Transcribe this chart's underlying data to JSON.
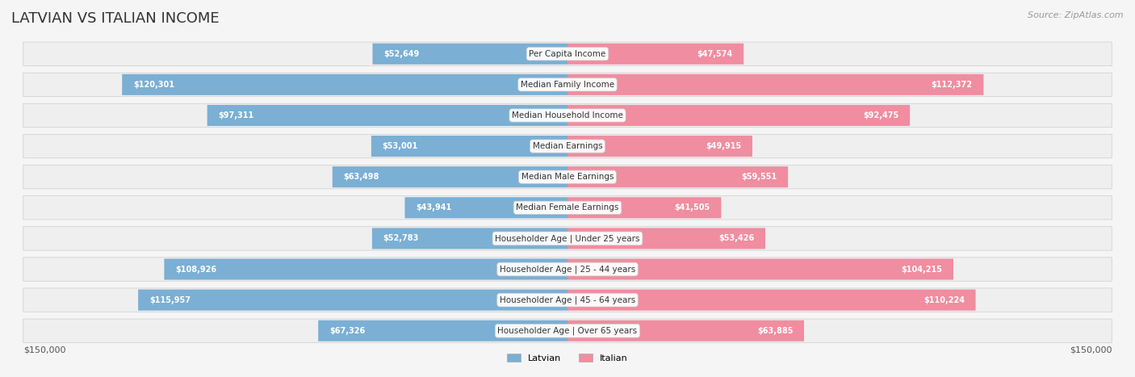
{
  "title": "LATVIAN VS ITALIAN INCOME",
  "source": "Source: ZipAtlas.com",
  "categories": [
    "Per Capita Income",
    "Median Family Income",
    "Median Household Income",
    "Median Earnings",
    "Median Male Earnings",
    "Median Female Earnings",
    "Householder Age | Under 25 years",
    "Householder Age | 25 - 44 years",
    "Householder Age | 45 - 64 years",
    "Householder Age | Over 65 years"
  ],
  "latvian_values": [
    52649,
    120301,
    97311,
    53001,
    63498,
    43941,
    52783,
    108926,
    115957,
    67326
  ],
  "italian_values": [
    47574,
    112372,
    92475,
    49915,
    59551,
    41505,
    53426,
    104215,
    110224,
    63885
  ],
  "latvian_labels": [
    "$52,649",
    "$120,301",
    "$97,311",
    "$53,001",
    "$63,498",
    "$43,941",
    "$52,783",
    "$108,926",
    "$115,957",
    "$67,326"
  ],
  "italian_labels": [
    "$47,574",
    "$112,372",
    "$92,475",
    "$49,915",
    "$59,551",
    "$41,505",
    "$53,426",
    "$104,215",
    "$110,224",
    "$63,885"
  ],
  "latvian_color": "#7bafd4",
  "italian_color": "#f08da0",
  "latvian_color_dark": "#5b8db8",
  "italian_color_dark": "#e8607a",
  "max_value": 150000,
  "bg_color": "#f5f5f5",
  "row_bg_color": "#efefef",
  "label_bg_color": "#ffffff",
  "title_color": "#333333",
  "source_color": "#999999",
  "legend_latvian": "Latvian",
  "legend_italian": "Italian"
}
